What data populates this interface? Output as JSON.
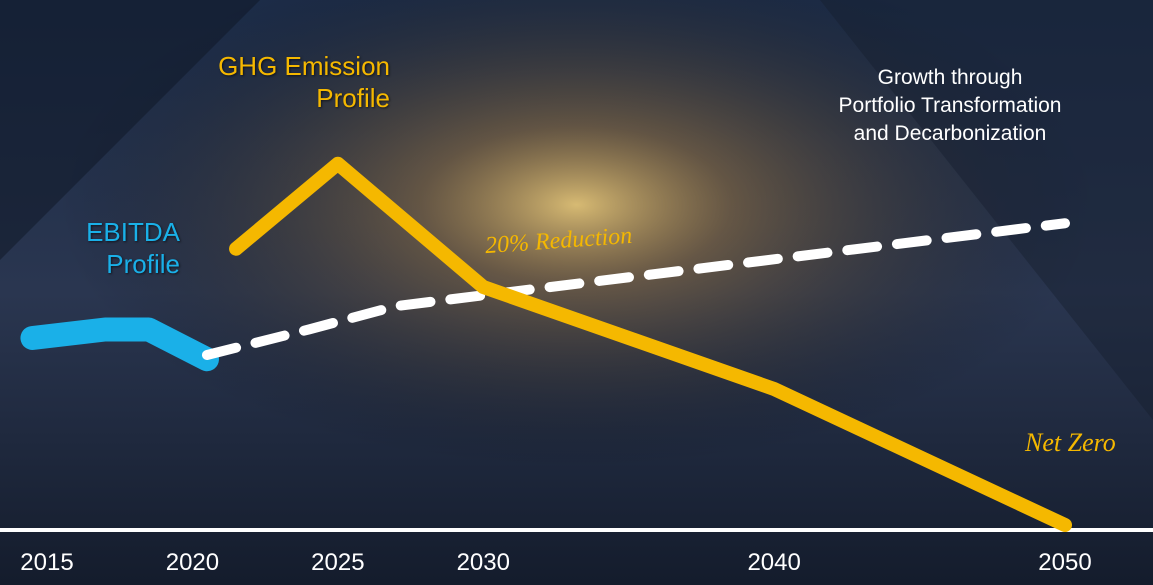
{
  "chart_data": {
    "type": "line",
    "series": [
      {
        "name": "GHG Emission Profile",
        "color": "#f5b800",
        "x": [
          2021.5,
          2025,
          2030,
          2040,
          2050
        ],
        "values": [
          65,
          85,
          56,
          32,
          0
        ]
      },
      {
        "name": "EBITDA Profile",
        "color": "#1ab0e8",
        "x": [
          2014.5,
          2017,
          2018.5,
          2020.5
        ],
        "values": [
          44,
          46,
          46,
          39
        ]
      },
      {
        "color": "#ffffff",
        "x": [
          2020.5,
          2024,
          2027,
          2050
        ],
        "values": [
          40,
          46,
          51.5,
          71
        ]
      }
    ],
    "annotations": {
      "growth": [
        "Growth through",
        "Portfolio Transformation",
        "and Decarbonization"
      ],
      "reduction": "20% Reduction",
      "net_zero": "Net Zero"
    },
    "xlim": [
      2013,
      2052
    ],
    "xticks": [
      2015,
      2020,
      2025,
      2030,
      2040,
      2050
    ],
    "ylim": [
      0,
      100
    ]
  }
}
